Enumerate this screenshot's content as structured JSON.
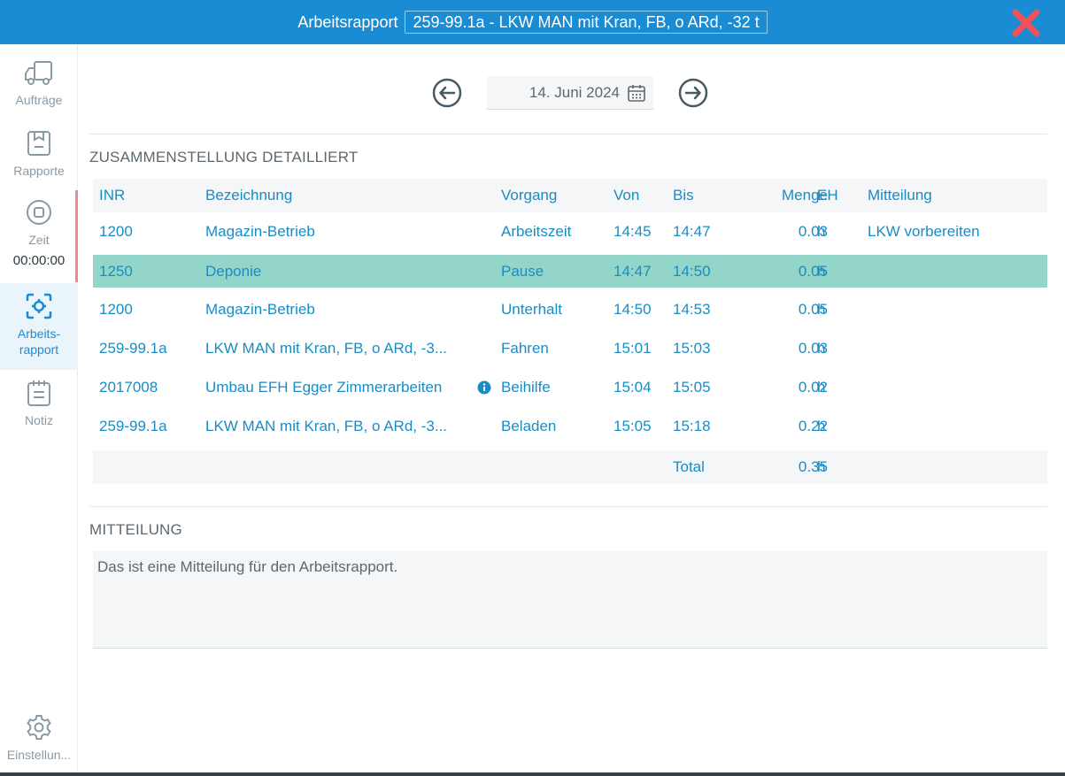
{
  "header": {
    "title": "Arbeitsrapport",
    "vehicle": "259-99.1a - LKW MAN mit Kran, FB, o ARd, -32 t",
    "close_icon": "close-icon",
    "accent": "#1a8cd4",
    "close_color": "#f0525a"
  },
  "sidebar": {
    "items": [
      {
        "label": "Aufträge",
        "icon": "truck-icon"
      },
      {
        "label": "Rapporte",
        "icon": "clipboard-icon"
      },
      {
        "label": "Zeit",
        "icon": "stop-circle-icon",
        "timer": "00:00:00"
      },
      {
        "label": "Arbeits-\nrapport",
        "icon": "scan-target-icon"
      },
      {
        "label": "Notiz",
        "icon": "notepad-icon"
      }
    ],
    "settings": {
      "label": "Einstellun...",
      "icon": "gear-icon"
    }
  },
  "date_nav": {
    "date": "14. Juni 2024",
    "prev_icon": "arrow-left-circle-icon",
    "next_icon": "arrow-right-circle-icon",
    "calendar_icon": "calendar-icon"
  },
  "summary": {
    "title": "ZUSAMMENSTELLUNG DETAILLIERT",
    "columns": {
      "inr": "INR",
      "bez": "Bezeichnung",
      "vorgang": "Vorgang",
      "von": "Von",
      "bis": "Bis",
      "menge": "Menge",
      "eh": "EH",
      "mitteilung": "Mitteilung"
    },
    "rows": [
      {
        "inr": "1200",
        "bez": "Magazin-Betrieb",
        "vorgang": "Arbeitszeit",
        "von": "14:45",
        "bis": "14:47",
        "menge": "0.03",
        "eh": "h",
        "mitteilung": "LKW vorbereiten"
      },
      {
        "inr": "1250",
        "bez": "Deponie",
        "vorgang": "Pause",
        "von": "14:47",
        "bis": "14:50",
        "menge": "0.05",
        "eh": "h",
        "mitteilung": ""
      },
      {
        "inr": "1200",
        "bez": "Magazin-Betrieb",
        "vorgang": "Unterhalt",
        "von": "14:50",
        "bis": "14:53",
        "menge": "0.05",
        "eh": "h",
        "mitteilung": ""
      },
      {
        "inr": "259-99.1a",
        "bez": "LKW MAN mit Kran, FB, o ARd, -3...",
        "vorgang": "Fahren",
        "von": "15:01",
        "bis": "15:03",
        "menge": "0.03",
        "eh": "h",
        "mitteilung": ""
      },
      {
        "inr": "2017008",
        "bez": "Umbau EFH Egger Zimmerarbeiten",
        "vorgang": "Beihilfe",
        "von": "15:04",
        "bis": "15:05",
        "menge": "0.02",
        "eh": "h",
        "mitteilung": "",
        "info_icon": "info-icon"
      },
      {
        "inr": "259-99.1a",
        "bez": "LKW MAN mit Kran, FB, o ARd, -3...",
        "vorgang": "Beladen",
        "von": "15:05",
        "bis": "15:18",
        "menge": "0.22",
        "eh": "h",
        "mitteilung": ""
      }
    ],
    "total": {
      "label": "Total",
      "menge": "0.35",
      "eh": "h"
    },
    "selected_color": "#93d6c9"
  },
  "message": {
    "title": "MITTEILUNG",
    "text": "Das ist eine Mitteilung für den Arbeitsrapport."
  }
}
